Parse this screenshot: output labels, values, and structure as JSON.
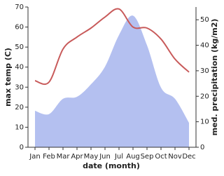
{
  "chart_data": {
    "type": "line-area",
    "xlabel": "date (month)",
    "ylabel": "max temp (C)",
    "y2label": "med. precipitation (kg/m2)",
    "categories": [
      "Jan",
      "Feb",
      "Mar",
      "Apr",
      "May",
      "Jun",
      "Jul",
      "Aug",
      "Sep",
      "Oct",
      "Nov",
      "Dec"
    ],
    "series": [
      {
        "name": "max temp",
        "color": "#c85a5a",
        "kind": "line",
        "values": [
          33.2,
          32.5,
          49,
          55,
          59.5,
          65,
          69,
          60,
          59.5,
          54,
          44,
          37.5
        ]
      },
      {
        "name": "med. precipitation",
        "color": "#b4c0f0",
        "kind": "area",
        "axis": "y2",
        "values": [
          14.3,
          13,
          19,
          19.8,
          24.7,
          31.6,
          44,
          51.6,
          40,
          23.4,
          19,
          9.6
        ]
      }
    ],
    "ylim": [
      0,
      70
    ],
    "yticks": [
      0,
      10,
      20,
      30,
      40,
      50,
      60,
      70
    ],
    "y2lim": [
      0,
      55
    ],
    "y2ticks": [
      0,
      10,
      20,
      30,
      40,
      50
    ]
  }
}
